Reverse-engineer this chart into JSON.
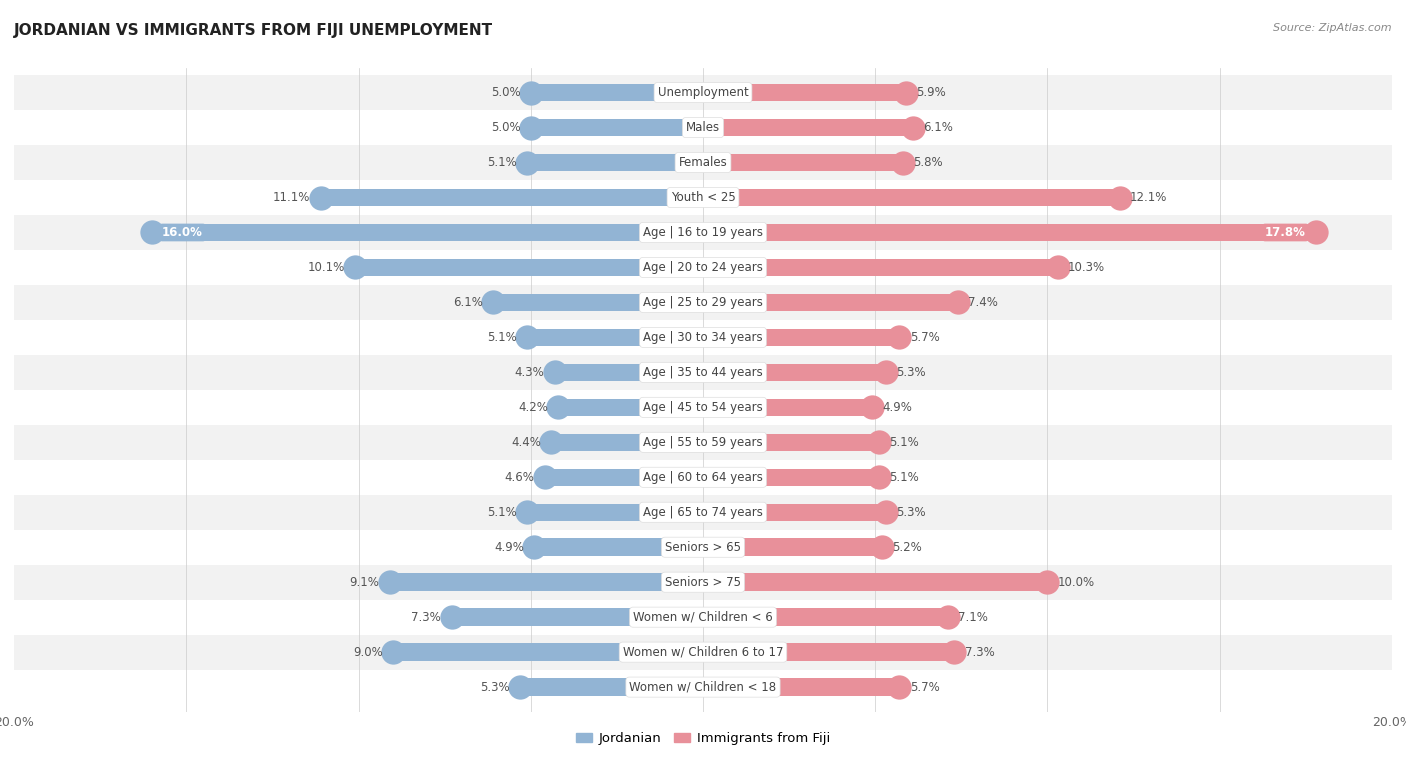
{
  "title": "JORDANIAN VS IMMIGRANTS FROM FIJI UNEMPLOYMENT",
  "source": "Source: ZipAtlas.com",
  "categories": [
    "Unemployment",
    "Males",
    "Females",
    "Youth < 25",
    "Age | 16 to 19 years",
    "Age | 20 to 24 years",
    "Age | 25 to 29 years",
    "Age | 30 to 34 years",
    "Age | 35 to 44 years",
    "Age | 45 to 54 years",
    "Age | 55 to 59 years",
    "Age | 60 to 64 years",
    "Age | 65 to 74 years",
    "Seniors > 65",
    "Seniors > 75",
    "Women w/ Children < 6",
    "Women w/ Children 6 to 17",
    "Women w/ Children < 18"
  ],
  "jordanian": [
    5.0,
    5.0,
    5.1,
    11.1,
    16.0,
    10.1,
    6.1,
    5.1,
    4.3,
    4.2,
    4.4,
    4.6,
    5.1,
    4.9,
    9.1,
    7.3,
    9.0,
    5.3
  ],
  "fiji": [
    5.9,
    6.1,
    5.8,
    12.1,
    17.8,
    10.3,
    7.4,
    5.7,
    5.3,
    4.9,
    5.1,
    5.1,
    5.3,
    5.2,
    10.0,
    7.1,
    7.3,
    5.7
  ],
  "color_jordanian": "#92b4d4",
  "color_fiji": "#e8909a",
  "color_jordanian_dark": "#6fa0cc",
  "color_fiji_dark": "#e06878",
  "xlim": 20.0,
  "row_color_odd": "#f2f2f2",
  "row_color_even": "#ffffff",
  "bar_height": 0.5,
  "label_fontsize": 8.5,
  "category_fontsize": 8.5,
  "value_label_color": "#555555",
  "title_fontsize": 11,
  "source_fontsize": 8
}
